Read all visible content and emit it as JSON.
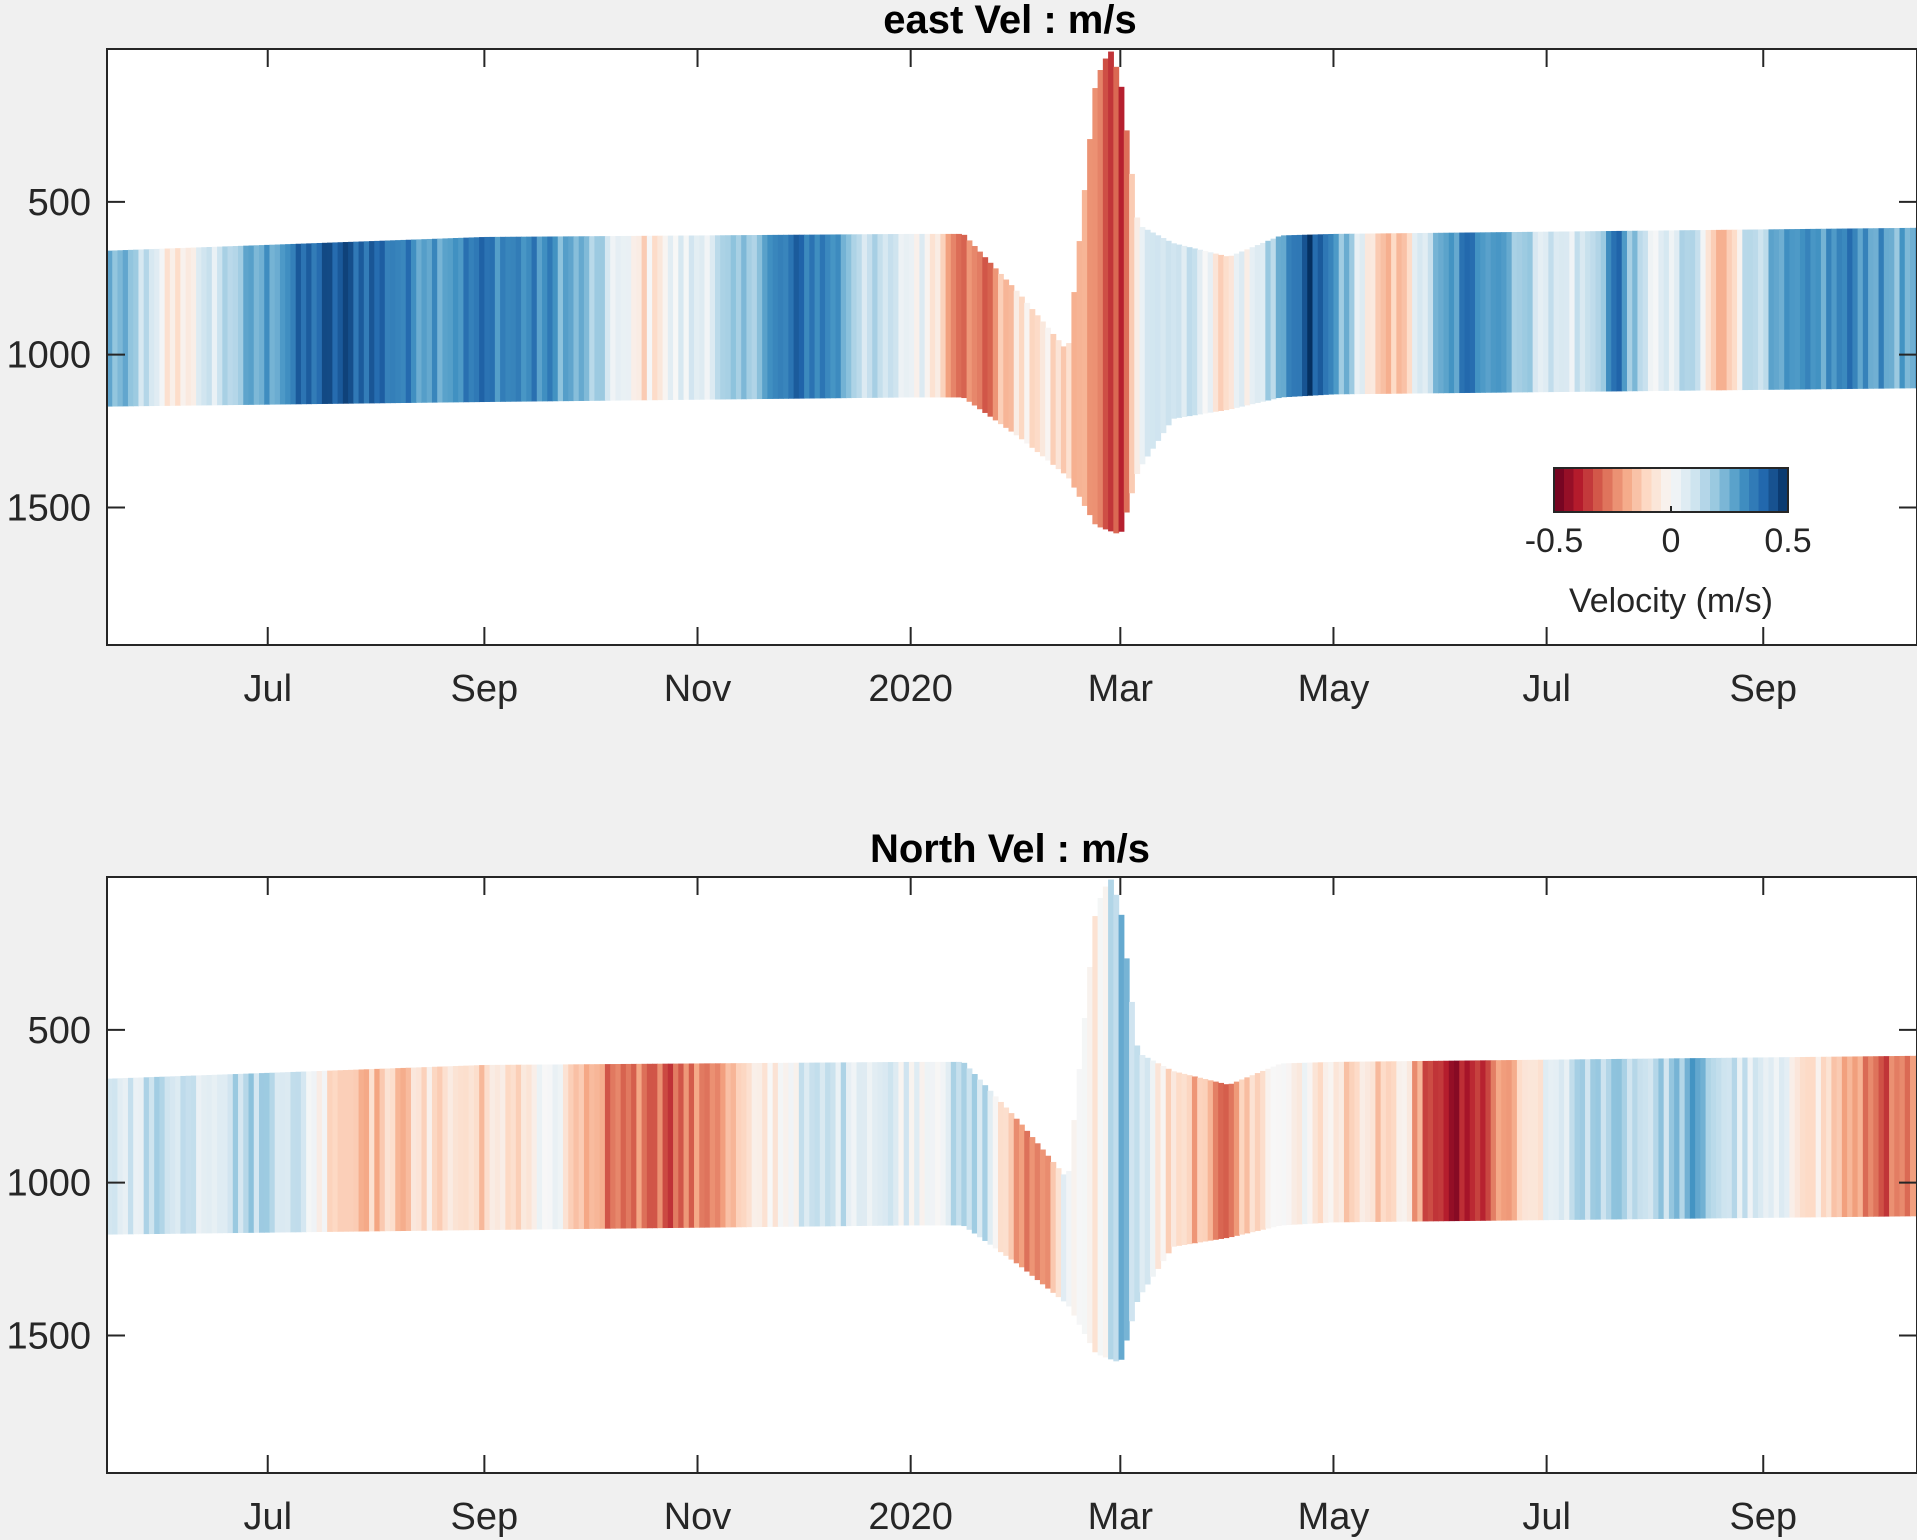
{
  "chart_data": [
    {
      "type": "heatmap",
      "title": "east Vel : m/s",
      "xlabel": "",
      "ylabel": "",
      "x_ticks": [
        "Jul",
        "Sep",
        "Nov",
        "2020",
        "Mar",
        "May",
        "Jul",
        "Sep"
      ],
      "x_tick_dates": [
        "2019-07-01",
        "2019-09-01",
        "2019-11-01",
        "2020-01-01",
        "2020-03-01",
        "2020-05-01",
        "2020-07-01",
        "2020-09-01"
      ],
      "xlim": [
        "2019-05-16",
        "2020-10-15"
      ],
      "y_ticks": [
        500,
        1000,
        1500
      ],
      "ylim": [
        0,
        1950
      ],
      "y_reversed": true,
      "grid": false,
      "colorbar": {
        "label": "Velocity (m/s)",
        "ticks": [
          -0.5,
          0,
          0.5
        ],
        "clim": [
          -0.5,
          0.5
        ],
        "colors": [
          "#67001f",
          "#b2182b",
          "#d6604d",
          "#f4a582",
          "#fddbc7",
          "#f7f7f7",
          "#d1e5f0",
          "#92c5de",
          "#4393c3",
          "#2166ac",
          "#053061"
        ]
      },
      "profile_top": [
        [
          "2019-05-16",
          660
        ],
        [
          "2019-09-01",
          615
        ],
        [
          "2020-01-01",
          605
        ],
        [
          "2020-01-16",
          605
        ],
        [
          "2020-02-01",
          800
        ],
        [
          "2020-02-15",
          990
        ],
        [
          "2020-02-23",
          100
        ],
        [
          "2020-02-27",
          0
        ],
        [
          "2020-03-01",
          100
        ],
        [
          "2020-03-06",
          575
        ],
        [
          "2020-03-16",
          635
        ],
        [
          "2020-04-01",
          680
        ],
        [
          "2020-04-16",
          610
        ],
        [
          "2020-05-01",
          605
        ],
        [
          "2020-10-15",
          585
        ]
      ],
      "profile_bottom": [
        [
          "2019-05-16",
          1170
        ],
        [
          "2019-09-01",
          1155
        ],
        [
          "2020-01-01",
          1140
        ],
        [
          "2020-01-16",
          1140
        ],
        [
          "2020-02-01",
          1270
        ],
        [
          "2020-02-15",
          1400
        ],
        [
          "2020-02-23",
          1560
        ],
        [
          "2020-03-01",
          1590
        ],
        [
          "2020-03-06",
          1380
        ],
        [
          "2020-03-16",
          1210
        ],
        [
          "2020-04-01",
          1180
        ],
        [
          "2020-04-16",
          1140
        ],
        [
          "2020-05-01",
          1130
        ],
        [
          "2020-10-15",
          1110
        ]
      ],
      "velocity_series": [
        [
          "2019-05-16",
          0.25
        ],
        [
          "2019-05-25",
          0.15
        ],
        [
          "2019-06-03",
          -0.08
        ],
        [
          "2019-06-13",
          0.05
        ],
        [
          "2019-06-22",
          0.18
        ],
        [
          "2019-07-02",
          0.28
        ],
        [
          "2019-07-12",
          0.38
        ],
        [
          "2019-07-22",
          0.42
        ],
        [
          "2019-08-01",
          0.4
        ],
        [
          "2019-08-11",
          0.32
        ],
        [
          "2019-08-21",
          0.3
        ],
        [
          "2019-08-31",
          0.36
        ],
        [
          "2019-09-10",
          0.33
        ],
        [
          "2019-09-20",
          0.3
        ],
        [
          "2019-09-30",
          0.2
        ],
        [
          "2019-10-08",
          0.06
        ],
        [
          "2019-10-16",
          -0.08
        ],
        [
          "2019-10-25",
          0.02
        ],
        [
          "2019-11-03",
          0.08
        ],
        [
          "2019-11-12",
          0.14
        ],
        [
          "2019-11-21",
          0.28
        ],
        [
          "2019-12-01",
          0.38
        ],
        [
          "2019-12-10",
          0.32
        ],
        [
          "2019-12-19",
          0.12
        ],
        [
          "2019-12-28",
          0.06
        ],
        [
          "2020-01-07",
          0.0
        ],
        [
          "2020-01-14",
          -0.22
        ],
        [
          "2020-01-22",
          -0.3
        ],
        [
          "2020-01-30",
          -0.1
        ],
        [
          "2020-02-07",
          -0.06
        ],
        [
          "2020-02-15",
          -0.12
        ],
        [
          "2020-02-23",
          -0.26
        ],
        [
          "2020-03-01",
          -0.34
        ],
        [
          "2020-03-07",
          0.05
        ],
        [
          "2020-03-15",
          0.12
        ],
        [
          "2020-03-23",
          0.05
        ],
        [
          "2020-03-31",
          -0.08
        ],
        [
          "2020-04-08",
          0.06
        ],
        [
          "2020-04-16",
          0.2
        ],
        [
          "2020-04-24",
          0.45
        ],
        [
          "2020-05-01",
          0.3
        ],
        [
          "2020-05-08",
          0.1
        ],
        [
          "2020-05-15",
          -0.22
        ],
        [
          "2020-05-22",
          -0.08
        ],
        [
          "2020-05-30",
          0.18
        ],
        [
          "2020-06-08",
          0.35
        ],
        [
          "2020-06-17",
          0.32
        ],
        [
          "2020-06-26",
          0.14
        ],
        [
          "2020-07-05",
          0.06
        ],
        [
          "2020-07-14",
          0.1
        ],
        [
          "2020-07-21",
          0.4
        ],
        [
          "2020-07-28",
          0.08
        ],
        [
          "2020-08-05",
          0.02
        ],
        [
          "2020-08-12",
          0.16
        ],
        [
          "2020-08-19",
          -0.22
        ],
        [
          "2020-08-28",
          0.14
        ],
        [
          "2020-09-07",
          0.24
        ],
        [
          "2020-09-17",
          0.28
        ],
        [
          "2020-09-27",
          0.34
        ],
        [
          "2020-10-07",
          0.26
        ],
        [
          "2020-10-15",
          0.22
        ]
      ]
    },
    {
      "type": "heatmap",
      "title": "North Vel : m/s",
      "xlabel": "",
      "ylabel": "",
      "x_ticks": [
        "Jul",
        "Sep",
        "Nov",
        "2020",
        "Mar",
        "May",
        "Jul",
        "Sep"
      ],
      "x_tick_dates": [
        "2019-07-01",
        "2019-09-01",
        "2019-11-01",
        "2020-01-01",
        "2020-03-01",
        "2020-05-01",
        "2020-07-01",
        "2020-09-01"
      ],
      "xlim": [
        "2019-05-16",
        "2020-10-15"
      ],
      "y_ticks": [
        500,
        1000,
        1500
      ],
      "ylim": [
        0,
        1950
      ],
      "y_reversed": true,
      "grid": false,
      "profile_top": [
        [
          "2019-05-16",
          660
        ],
        [
          "2019-09-01",
          615
        ],
        [
          "2020-01-01",
          605
        ],
        [
          "2020-01-16",
          605
        ],
        [
          "2020-02-01",
          800
        ],
        [
          "2020-02-15",
          990
        ],
        [
          "2020-02-23",
          100
        ],
        [
          "2020-02-27",
          0
        ],
        [
          "2020-03-01",
          100
        ],
        [
          "2020-03-06",
          575
        ],
        [
          "2020-03-16",
          635
        ],
        [
          "2020-04-01",
          680
        ],
        [
          "2020-04-16",
          610
        ],
        [
          "2020-05-01",
          605
        ],
        [
          "2020-10-15",
          585
        ]
      ],
      "profile_bottom": [
        [
          "2019-05-16",
          1170
        ],
        [
          "2019-09-01",
          1155
        ],
        [
          "2020-01-01",
          1140
        ],
        [
          "2020-01-16",
          1140
        ],
        [
          "2020-02-01",
          1270
        ],
        [
          "2020-02-15",
          1400
        ],
        [
          "2020-02-23",
          1560
        ],
        [
          "2020-03-01",
          1590
        ],
        [
          "2020-03-06",
          1380
        ],
        [
          "2020-03-16",
          1210
        ],
        [
          "2020-04-01",
          1180
        ],
        [
          "2020-04-16",
          1140
        ],
        [
          "2020-05-01",
          1130
        ],
        [
          "2020-10-15",
          1110
        ]
      ],
      "velocity_series": [
        [
          "2019-05-16",
          0.05
        ],
        [
          "2019-05-25",
          0.1
        ],
        [
          "2019-06-03",
          0.14
        ],
        [
          "2019-06-13",
          0.08
        ],
        [
          "2019-06-22",
          0.14
        ],
        [
          "2019-07-02",
          0.16
        ],
        [
          "2019-07-12",
          0.06
        ],
        [
          "2019-07-22",
          -0.1
        ],
        [
          "2019-08-01",
          -0.14
        ],
        [
          "2019-08-11",
          -0.12
        ],
        [
          "2019-08-21",
          -0.06
        ],
        [
          "2019-08-31",
          -0.1
        ],
        [
          "2019-09-10",
          -0.08
        ],
        [
          "2019-09-20",
          0.02
        ],
        [
          "2019-09-30",
          -0.2
        ],
        [
          "2019-10-08",
          -0.28
        ],
        [
          "2019-10-16",
          -0.24
        ],
        [
          "2019-10-25",
          -0.3
        ],
        [
          "2019-11-03",
          -0.24
        ],
        [
          "2019-11-12",
          -0.16
        ],
        [
          "2019-11-21",
          -0.04
        ],
        [
          "2019-12-01",
          0.06
        ],
        [
          "2019-12-10",
          0.1
        ],
        [
          "2019-12-19",
          0.08
        ],
        [
          "2019-12-28",
          0.06
        ],
        [
          "2020-01-07",
          0.04
        ],
        [
          "2020-01-14",
          0.1
        ],
        [
          "2020-01-22",
          0.14
        ],
        [
          "2020-01-30",
          -0.2
        ],
        [
          "2020-02-07",
          -0.26
        ],
        [
          "2020-02-15",
          0.06
        ],
        [
          "2020-02-23",
          -0.1
        ],
        [
          "2020-03-01",
          0.24
        ],
        [
          "2020-03-07",
          0.08
        ],
        [
          "2020-03-15",
          -0.1
        ],
        [
          "2020-03-23",
          -0.16
        ],
        [
          "2020-03-31",
          -0.26
        ],
        [
          "2020-04-08",
          -0.1
        ],
        [
          "2020-04-16",
          0.02
        ],
        [
          "2020-04-24",
          -0.04
        ],
        [
          "2020-05-01",
          -0.06
        ],
        [
          "2020-05-08",
          -0.1
        ],
        [
          "2020-05-15",
          -0.12
        ],
        [
          "2020-05-22",
          -0.08
        ],
        [
          "2020-05-30",
          -0.4
        ],
        [
          "2020-06-08",
          -0.44
        ],
        [
          "2020-06-17",
          -0.26
        ],
        [
          "2020-06-26",
          -0.1
        ],
        [
          "2020-07-05",
          0.08
        ],
        [
          "2020-07-14",
          0.14
        ],
        [
          "2020-07-21",
          0.2
        ],
        [
          "2020-07-28",
          0.12
        ],
        [
          "2020-08-05",
          0.16
        ],
        [
          "2020-08-12",
          0.24
        ],
        [
          "2020-08-19",
          0.14
        ],
        [
          "2020-08-28",
          0.06
        ],
        [
          "2020-09-07",
          0.0
        ],
        [
          "2020-09-17",
          -0.06
        ],
        [
          "2020-09-27",
          -0.22
        ],
        [
          "2020-10-07",
          -0.3
        ],
        [
          "2020-10-15",
          -0.26
        ]
      ]
    }
  ]
}
